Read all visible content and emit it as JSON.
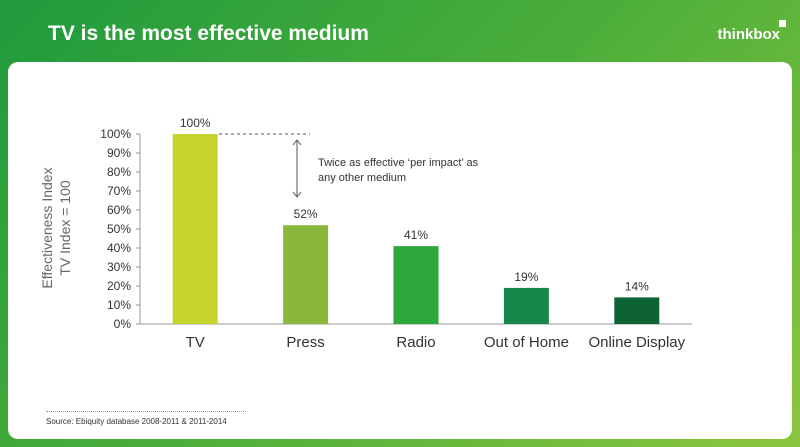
{
  "header": {
    "title": "TV is the most effective medium",
    "logo_text": "thinkbox"
  },
  "colors": {
    "background_green": "#3aa33c",
    "bar_tv": "#c8d42e",
    "bar_press": "#8ab83c",
    "bar_radio": "#2da83b",
    "bar_out_of_home": "#17864a",
    "bar_online_display": "#0e6334"
  },
  "chart_data": {
    "type": "bar",
    "categories": [
      "TV",
      "Press",
      "Radio",
      "Out of Home",
      "Online Display"
    ],
    "values": [
      100,
      52,
      41,
      19,
      14
    ],
    "data_labels": [
      "100%",
      "52%",
      "41%",
      "19%",
      "14%"
    ],
    "ylabel": [
      "Effectiveness Index",
      "TV Index = 100"
    ],
    "ylim": [
      0,
      100
    ],
    "yticks": [
      "0%",
      "10%",
      "20%",
      "30%",
      "40%",
      "50%",
      "60%",
      "70%",
      "80%",
      "90%",
      "100%"
    ],
    "grid": false,
    "legend": "none",
    "annotation": [
      "Twice as effective ‘per impact’ as",
      "any other medium"
    ]
  },
  "footer": {
    "source": "Source: Ebiquity database 2008-2011 & 2011-2014"
  }
}
